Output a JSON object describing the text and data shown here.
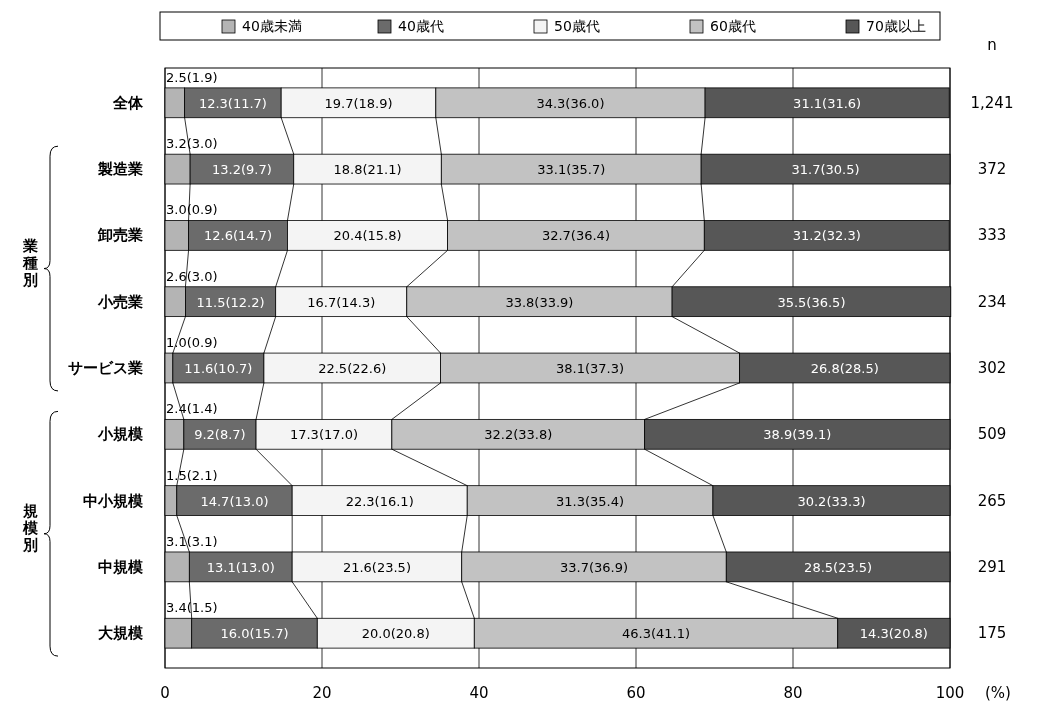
{
  "chart_data": {
    "type": "bar",
    "orientation": "horizontal",
    "stacked": true,
    "xlabel": "(%)",
    "categories": [
      "全体",
      "製造業",
      "卸売業",
      "小売業",
      "サービス業",
      "小規模",
      "中小規模",
      "中規模",
      "大規模"
    ],
    "series": [
      {
        "name": "40歳未満",
        "color": "#b4b4b4",
        "values": [
          2.5,
          3.2,
          3.0,
          2.6,
          1.0,
          2.4,
          1.5,
          3.1,
          3.4
        ],
        "value_labels": [
          "2.5(1.9)",
          "3.2(3.0)",
          "3.0(0.9)",
          "2.6(3.0)",
          "1.0(0.9)",
          "2.4(1.4)",
          "1.5(2.1)",
          "3.1(3.1)",
          "3.4(1.5)"
        ]
      },
      {
        "name": "40歳代",
        "color": "#6b6b6b",
        "values": [
          12.3,
          13.2,
          12.6,
          11.5,
          11.6,
          9.2,
          14.7,
          13.1,
          16.0
        ],
        "value_labels": [
          "12.3(11.7)",
          "13.2(9.7)",
          "12.6(14.7)",
          "11.5(12.2)",
          "11.6(10.7)",
          "9.2(8.7)",
          "14.7(13.0)",
          "13.1(13.0)",
          "16.0(15.7)"
        ]
      },
      {
        "name": "50歳代",
        "color": "#f4f4f4",
        "values": [
          19.7,
          18.8,
          20.4,
          16.7,
          22.5,
          17.3,
          22.3,
          21.6,
          20.0
        ],
        "value_labels": [
          "19.7(18.9)",
          "18.8(21.1)",
          "20.4(15.8)",
          "16.7(14.3)",
          "22.5(22.6)",
          "17.3(17.0)",
          "22.3(16.1)",
          "21.6(23.5)",
          "20.0(20.8)"
        ]
      },
      {
        "name": "60歳代",
        "color": "#c2c2c2",
        "values": [
          34.3,
          33.1,
          32.7,
          33.8,
          38.1,
          32.2,
          31.3,
          33.7,
          46.3
        ],
        "value_labels": [
          "34.3(36.0)",
          "33.1(35.7)",
          "32.7(36.4)",
          "33.8(33.9)",
          "38.1(37.3)",
          "32.2(33.8)",
          "31.3(35.4)",
          "33.7(36.9)",
          "46.3(41.1)"
        ]
      },
      {
        "name": "70歳以上",
        "color": "#575757",
        "values": [
          31.1,
          31.7,
          31.2,
          35.5,
          26.8,
          38.9,
          30.2,
          28.5,
          14.3
        ],
        "value_labels": [
          "31.1(31.6)",
          "31.7(30.5)",
          "31.2(32.3)",
          "35.5(36.5)",
          "26.8(28.5)",
          "38.9(39.1)",
          "30.2(33.3)",
          "28.5(23.5)",
          "14.3(20.8)"
        ]
      }
    ],
    "xlim": [
      0,
      100
    ],
    "xticks": [
      0,
      20,
      40,
      60,
      80,
      100
    ],
    "grid": "x",
    "legend": "top",
    "annotations": [
      "n",
      "1,241",
      "372",
      "333",
      "234",
      "302",
      "509",
      "265",
      "291",
      "175",
      "業種別",
      "規模別"
    ]
  }
}
